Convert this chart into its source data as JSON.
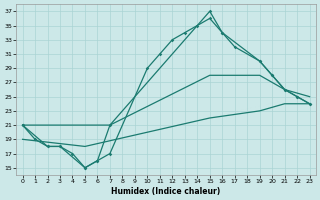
{
  "xlabel": "Humidex (Indice chaleur)",
  "xlim": [
    -0.5,
    23.5
  ],
  "ylim": [
    14,
    38
  ],
  "yticks": [
    15,
    17,
    19,
    21,
    23,
    25,
    27,
    29,
    31,
    33,
    35,
    37
  ],
  "xticks": [
    0,
    1,
    2,
    3,
    4,
    5,
    6,
    7,
    8,
    9,
    10,
    11,
    12,
    13,
    14,
    15,
    16,
    17,
    18,
    19,
    20,
    21,
    22,
    23
  ],
  "bg_color": "#cce8e8",
  "line_color": "#1b7b70",
  "grid_color": "#aad4d4",
  "line1_x": [
    0,
    1,
    2,
    3,
    4,
    5,
    6,
    7,
    15,
    16,
    19,
    20,
    21,
    22,
    23
  ],
  "line1_y": [
    21,
    19,
    18,
    18,
    17,
    15,
    16,
    21,
    37,
    34,
    30,
    28,
    26,
    25,
    24
  ],
  "line2_x": [
    0,
    2,
    3,
    5,
    6,
    7,
    10,
    11,
    12,
    13,
    14,
    15,
    16,
    17,
    19,
    20,
    21,
    22,
    23
  ],
  "line2_y": [
    21,
    18,
    18,
    15,
    16,
    17,
    29,
    31,
    33,
    34,
    35,
    36,
    34,
    32,
    30,
    28,
    26,
    25,
    24
  ],
  "line3_x": [
    0,
    7,
    15,
    19,
    20,
    21,
    22,
    23
  ],
  "line3_y": [
    21,
    21,
    28,
    28,
    27,
    26,
    25.5,
    25
  ],
  "line4_x": [
    0,
    5,
    10,
    15,
    19,
    20,
    21,
    22,
    23
  ],
  "line4_y": [
    19,
    18,
    20,
    22,
    23,
    23.5,
    24,
    24,
    24
  ]
}
